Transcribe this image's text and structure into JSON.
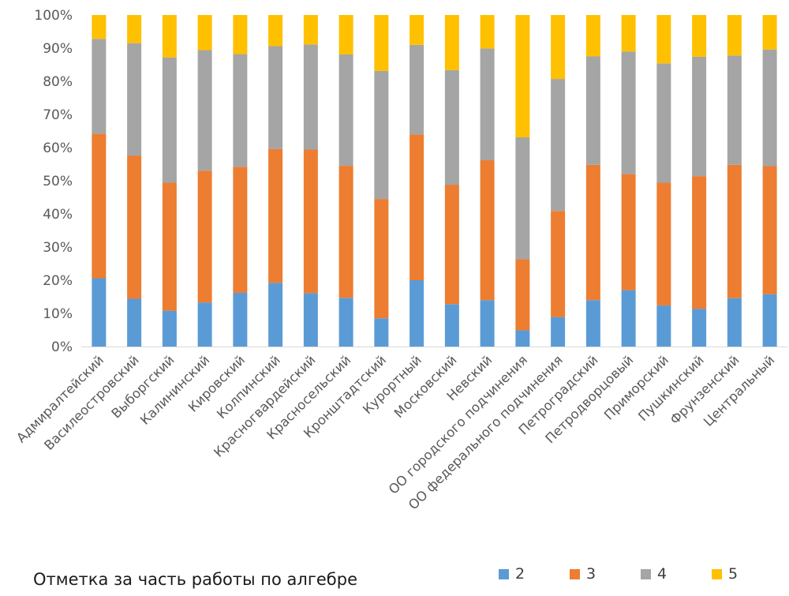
{
  "chart_data": {
    "type": "bar",
    "stacked": "percent",
    "title": "Отметка за часть работы по алгебре",
    "ylim": [
      0,
      100
    ],
    "yticks": [
      "0%",
      "10%",
      "20%",
      "30%",
      "40%",
      "50%",
      "60%",
      "70%",
      "80%",
      "90%",
      "100%"
    ],
    "grid": false,
    "legend_position": "bottom-right",
    "categories": [
      "Адмиралтейский",
      "Василеостровский",
      "Выборгский",
      "Калининский",
      "Кировский",
      "Колпинский",
      "Красногвардейский",
      "Красносельский",
      "Кронштадтский",
      "Курортный",
      "Московский",
      "Невский",
      "ОО городского подчинения",
      "ОО федерального подчинения",
      "Петроградский",
      "Петродворцовый",
      "Приморский",
      "Пушкинский",
      "Фрунзенский",
      "Центральный"
    ],
    "series": [
      {
        "name": "2",
        "color": "#5b9bd5",
        "values": [
          20.6,
          14.4,
          10.8,
          13.3,
          16.2,
          19.2,
          16.1,
          14.7,
          8.5,
          20.0,
          12.8,
          14.0,
          4.9,
          8.9,
          14.0,
          17.0,
          12.4,
          11.4,
          14.6,
          15.8
        ]
      },
      {
        "name": "3",
        "color": "#ed7d31",
        "values": [
          43.6,
          43.2,
          38.6,
          39.7,
          38.0,
          40.4,
          43.3,
          39.8,
          36.0,
          44.0,
          36.0,
          42.2,
          21.4,
          32.0,
          40.8,
          35.0,
          37.0,
          40.0,
          40.2,
          38.6
        ]
      },
      {
        "name": "4",
        "color": "#a5a5a5",
        "values": [
          28.6,
          33.9,
          37.8,
          36.4,
          34.0,
          31.0,
          31.7,
          33.6,
          38.6,
          27.0,
          34.6,
          33.7,
          36.8,
          39.8,
          32.7,
          37.0,
          36.0,
          36.0,
          33.0,
          35.2
        ]
      },
      {
        "name": "5",
        "color": "#ffc000",
        "values": [
          7.2,
          8.5,
          12.8,
          10.6,
          11.8,
          9.4,
          8.9,
          11.9,
          16.9,
          9.0,
          16.6,
          10.1,
          36.9,
          19.3,
          12.5,
          11.0,
          14.6,
          12.6,
          12.2,
          10.4
        ]
      }
    ]
  }
}
